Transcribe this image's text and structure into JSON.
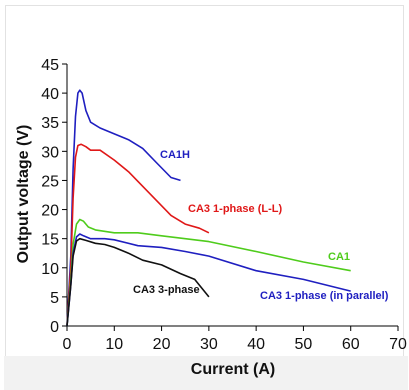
{
  "chart_data": {
    "type": "line",
    "xlabel": "Current (A)",
    "ylabel": "Output voltage (V)",
    "xlim": [
      0,
      70
    ],
    "ylim": [
      0,
      45
    ],
    "xticks": [
      0,
      10,
      20,
      30,
      40,
      50,
      60,
      70
    ],
    "yticks": [
      0,
      5,
      10,
      15,
      20,
      25,
      30,
      35,
      40,
      45
    ],
    "grid": false,
    "legend": "none (series labeled inline)",
    "series": [
      {
        "name": "CA1H",
        "color": "#1f1fc0",
        "points": [
          [
            0,
            0
          ],
          [
            0.8,
            12
          ],
          [
            1.3,
            27
          ],
          [
            1.8,
            36
          ],
          [
            2.3,
            40
          ],
          [
            2.7,
            40.5
          ],
          [
            3.2,
            40
          ],
          [
            4,
            37
          ],
          [
            5,
            35
          ],
          [
            7,
            34
          ],
          [
            10,
            33
          ],
          [
            13,
            32
          ],
          [
            16,
            30.5
          ],
          [
            19,
            28
          ],
          [
            22,
            25.5
          ],
          [
            24,
            25
          ]
        ]
      },
      {
        "name": "CA3 1-phase (L-L)",
        "color": "#e01818",
        "points": [
          [
            0,
            0
          ],
          [
            0.8,
            10
          ],
          [
            1.3,
            22
          ],
          [
            1.8,
            29
          ],
          [
            2.3,
            31
          ],
          [
            3,
            31.2
          ],
          [
            4,
            30.8
          ],
          [
            5,
            30.2
          ],
          [
            7,
            30.2
          ],
          [
            10,
            28.5
          ],
          [
            13,
            26.5
          ],
          [
            16,
            24
          ],
          [
            19,
            21.5
          ],
          [
            22,
            19
          ],
          [
            25,
            17.5
          ],
          [
            28,
            16.8
          ],
          [
            30,
            16
          ]
        ]
      },
      {
        "name": "CA1",
        "color": "#4fcc1c",
        "points": [
          [
            0,
            0
          ],
          [
            0.8,
            8
          ],
          [
            1.3,
            14
          ],
          [
            2,
            17.5
          ],
          [
            2.7,
            18.3
          ],
          [
            3.5,
            18
          ],
          [
            4.5,
            17
          ],
          [
            6,
            16.5
          ],
          [
            10,
            16
          ],
          [
            15,
            16
          ],
          [
            20,
            15.5
          ],
          [
            30,
            14.5
          ],
          [
            40,
            12.8
          ],
          [
            50,
            11
          ],
          [
            60,
            9.5
          ]
        ]
      },
      {
        "name": "CA3 1-phase (in parallel)",
        "color": "#1f1fc0",
        "points": [
          [
            0,
            0
          ],
          [
            0.8,
            7
          ],
          [
            1.3,
            12.5
          ],
          [
            2,
            15.3
          ],
          [
            2.7,
            15.8
          ],
          [
            3.5,
            15.5
          ],
          [
            5,
            15
          ],
          [
            8,
            15
          ],
          [
            10,
            14.8
          ],
          [
            15,
            13.8
          ],
          [
            20,
            13.5
          ],
          [
            25,
            12.8
          ],
          [
            30,
            12
          ],
          [
            40,
            9.5
          ],
          [
            50,
            8
          ],
          [
            60,
            6
          ]
        ]
      },
      {
        "name": "CA3 3-phase",
        "color": "#111111",
        "points": [
          [
            0,
            0
          ],
          [
            0.8,
            7
          ],
          [
            1.3,
            12
          ],
          [
            2,
            14.6
          ],
          [
            2.7,
            15
          ],
          [
            4,
            14.7
          ],
          [
            6,
            14.2
          ],
          [
            8,
            14
          ],
          [
            10,
            13.5
          ],
          [
            13,
            12.5
          ],
          [
            16,
            11.3
          ],
          [
            20,
            10.5
          ],
          [
            24,
            9
          ],
          [
            27,
            8
          ],
          [
            30,
            5
          ]
        ]
      }
    ],
    "annotations": [
      {
        "text": "CA1H",
        "color": "#1f1fc0"
      },
      {
        "text": "CA3 1-phase (L-L)",
        "color": "#e01818"
      },
      {
        "text": "CA1",
        "color": "#4fcc1c"
      },
      {
        "text": "CA3 3-phase",
        "color": "#111111"
      },
      {
        "text": "CA3 1-phase (in parallel)",
        "color": "#1f1fc0"
      }
    ]
  }
}
